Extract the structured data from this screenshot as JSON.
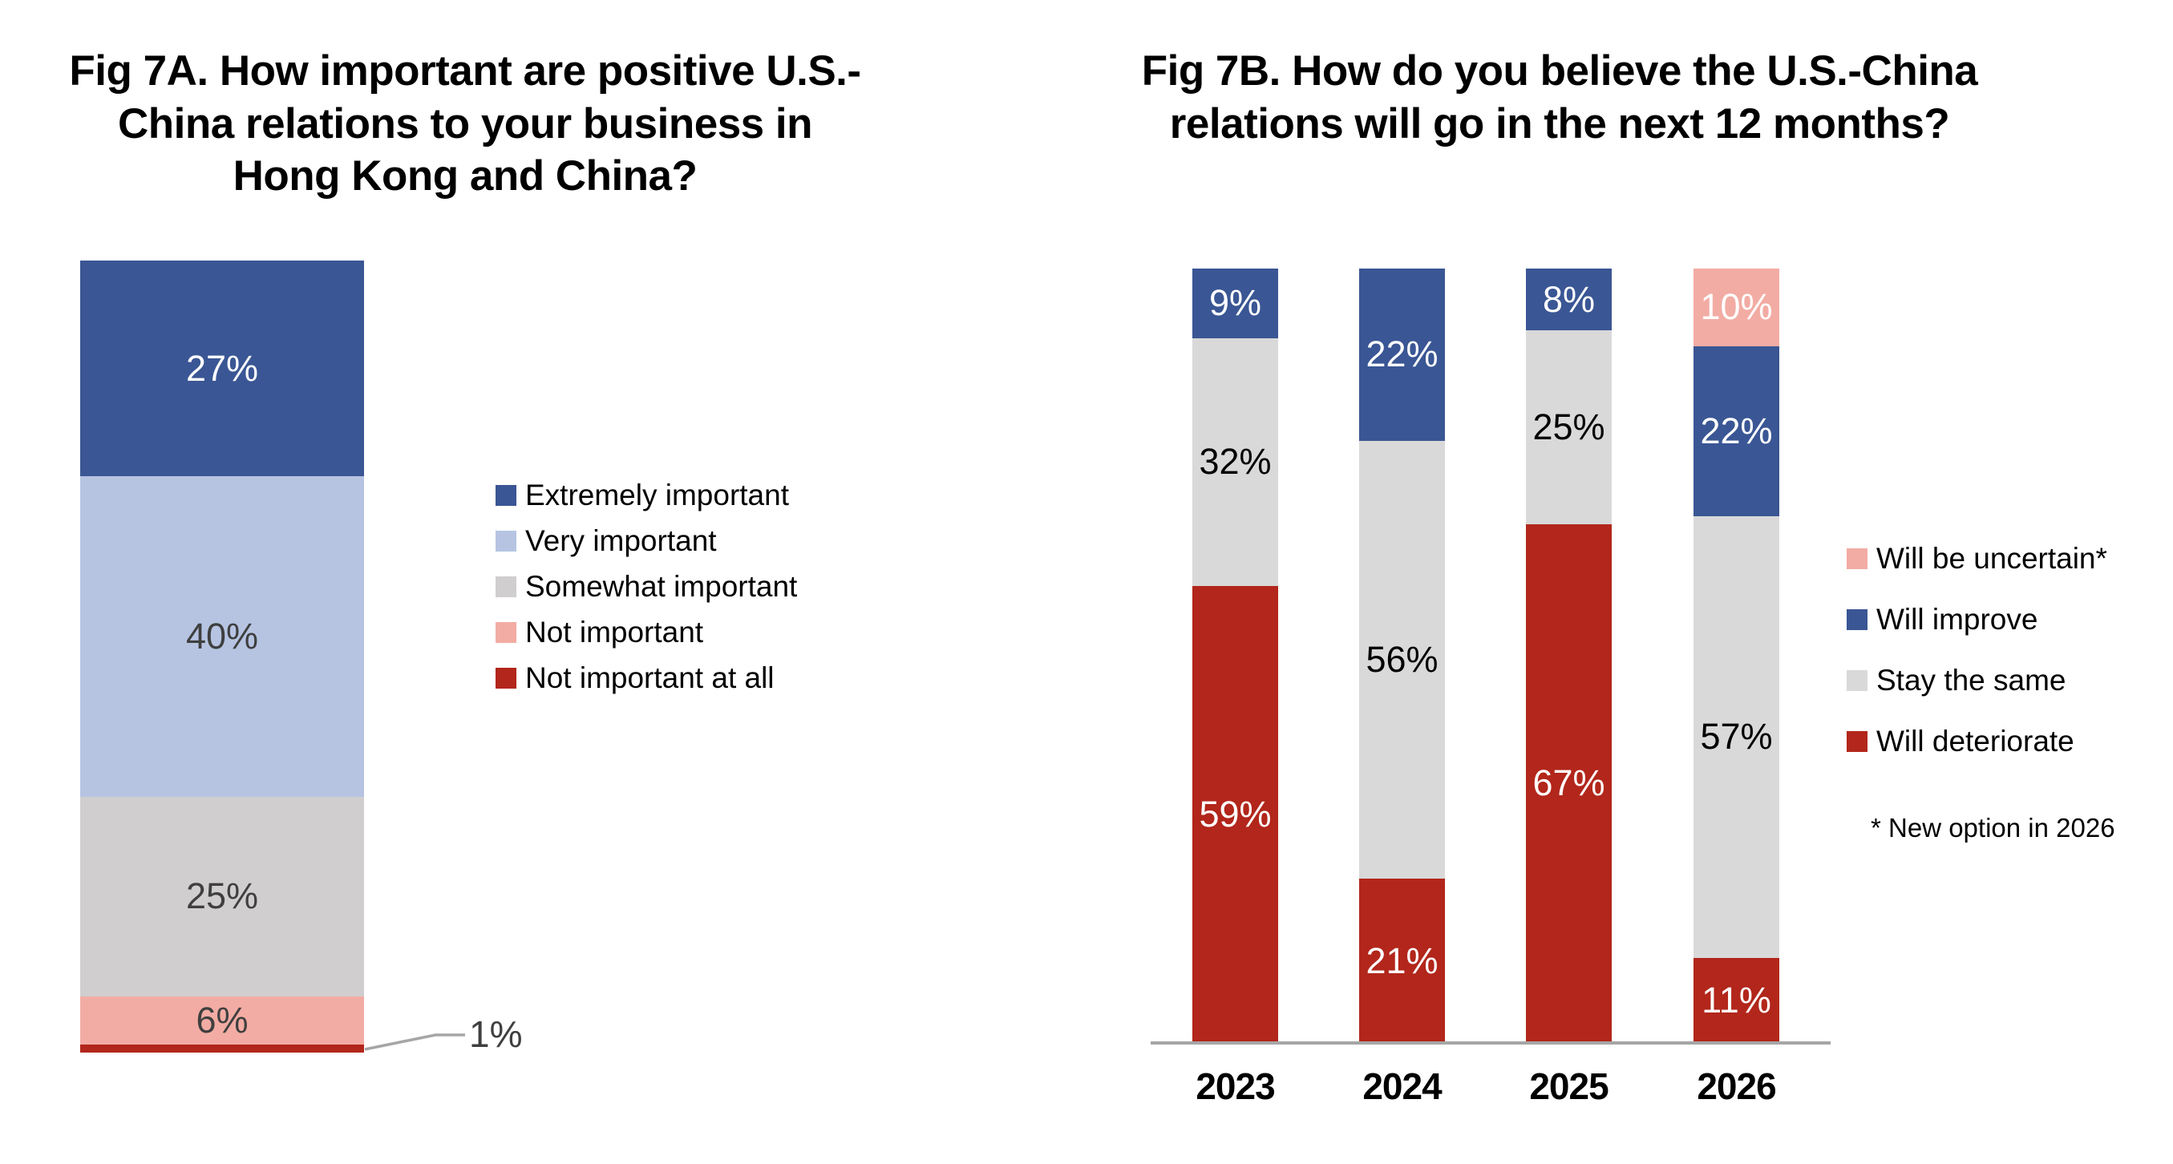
{
  "page": {
    "background": "#FFFFFF",
    "axis_color": "#A6A6A6",
    "callout_line_color": "#A6A6A6"
  },
  "chart_data": [
    {
      "type": "bar",
      "stacked": true,
      "title": "Fig 7A. How important are positive U.S.-China relations to your business in Hong Kong and China?",
      "title_lines": "Fig 7A. How important are positive U.S.-\nChina relations to your business in\nHong Kong and China?",
      "xlabel": "",
      "ylabel": "",
      "units": "%",
      "ylim": [
        0,
        100
      ],
      "grid": false,
      "legend_position": "right-of-bar",
      "categories": [
        ""
      ],
      "series": [
        {
          "name": "Extremely important",
          "color": "#3A5694",
          "label_color": "#FFFFFF",
          "values": [
            27
          ]
        },
        {
          "name": "Very important",
          "color": "#B6C4E2",
          "label_color": "#3F3F3F",
          "values": [
            40
          ]
        },
        {
          "name": "Somewhat important",
          "color": "#D0CECE",
          "label_color": "#3F3F3F",
          "values": [
            25
          ]
        },
        {
          "name": "Not important",
          "color": "#F2ACA4",
          "label_color": "#3F3F3F",
          "values": [
            6
          ]
        },
        {
          "name": "Not important at all",
          "color": "#B2261B",
          "label_color": "#3F3F3F",
          "values": [
            1
          ],
          "label_outside": true
        }
      ],
      "callout": {
        "text": "1%"
      }
    },
    {
      "type": "bar",
      "stacked": true,
      "title": "Fig 7B. How do you believe the U.S.-China relations will go in the next 12 months?",
      "title_lines": "Fig 7B. How do you believe the U.S.-China\nrelations will go in the next 12 months?",
      "xlabel": "",
      "ylabel": "",
      "units": "%",
      "ylim": [
        0,
        100
      ],
      "grid": false,
      "legend_position": "right",
      "categories": [
        "2023",
        "2024",
        "2025",
        "2026"
      ],
      "series": [
        {
          "name": "Will be uncertain*",
          "color": "#F2ACA4",
          "label_color": "#FFFFFF",
          "values": [
            null,
            null,
            null,
            10
          ]
        },
        {
          "name": "Will improve",
          "color": "#3A5694",
          "label_color": "#FFFFFF",
          "values": [
            9,
            22,
            8,
            22
          ]
        },
        {
          "name": "Stay the same",
          "color": "#D9D9D9",
          "label_color": "#000000",
          "values": [
            32,
            56,
            25,
            57
          ]
        },
        {
          "name": "Will deteriorate",
          "color": "#B2261B",
          "label_color": "#FFFFFF",
          "values": [
            59,
            21,
            67,
            11
          ]
        }
      ],
      "footnote": "* New option in 2026"
    }
  ]
}
